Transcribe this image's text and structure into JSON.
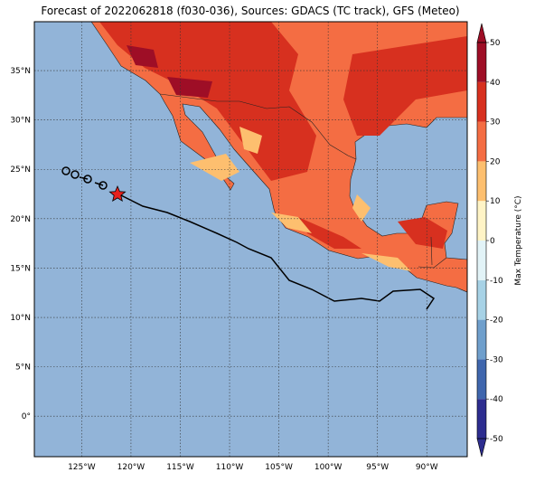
{
  "map": {
    "title": "Forecast of 2022062818 (f030-036), Sources: GDACS (TC track), GFS (Meteo)",
    "lon_range": [
      -129.8,
      -85.9
    ],
    "lat_range": [
      -4.1,
      39.95
    ],
    "lon_ticks": [
      {
        "value": -125,
        "label": "125°W"
      },
      {
        "value": -120,
        "label": "120°W"
      },
      {
        "value": -115,
        "label": "115°W"
      },
      {
        "value": -110,
        "label": "110°W"
      },
      {
        "value": -105,
        "label": "105°W"
      },
      {
        "value": -100,
        "label": "100°W"
      },
      {
        "value": -95,
        "label": "95°W"
      },
      {
        "value": -90,
        "label": "90°W"
      }
    ],
    "lat_ticks": [
      {
        "value": 0,
        "label": "0°"
      },
      {
        "value": 5,
        "label": "5°N"
      },
      {
        "value": 10,
        "label": "10°N"
      },
      {
        "value": 15,
        "label": "15°N"
      },
      {
        "value": 20,
        "label": "20°N"
      },
      {
        "value": 25,
        "label": "25°N"
      },
      {
        "value": 30,
        "label": "30°N"
      },
      {
        "value": 35,
        "label": "35°N"
      }
    ],
    "colorbar": {
      "label": "Max Temperature (°C)",
      "ticks": [
        -50,
        -40,
        -30,
        -20,
        -10,
        0,
        10,
        20,
        30,
        40,
        50
      ],
      "colors": [
        "#2d2d8f",
        "#3f66ad",
        "#6f9fcc",
        "#a7d2e6",
        "#e2f3f7",
        "#fff4c6",
        "#fdbf6f",
        "#f46d43",
        "#d7301f",
        "#9e0e26"
      ]
    }
  }
}
